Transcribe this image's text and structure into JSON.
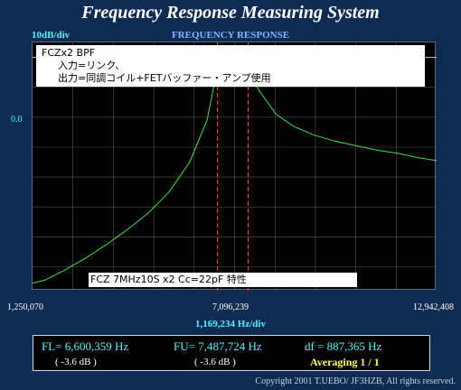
{
  "window": {
    "title": "Frequency Response Measuring System"
  },
  "panel": {
    "title": "FREQUENCY RESPONSE",
    "scale_label": "10dB/div",
    "ref_level": "0.0"
  },
  "comment": {
    "line1": "FCZx2 BPF",
    "line2": "入力=リンク、",
    "line3": "出力=同調コイル+FETバッファー・アンプ使用"
  },
  "caption": "FCZ 7MHz10S x2 Cc=22pF 特性",
  "axis": {
    "start": "1,250,070",
    "center": "7,096,239",
    "stop": "12,942,408",
    "span": "1,169,234 Hz/div"
  },
  "readout": {
    "fl": "FL= 6,600,359  Hz",
    "fu": "FU= 7,487,724  Hz",
    "df": "df = 887,365  Hz",
    "fl_level": "( -3.6 dB )",
    "fu_level": "( -3.6 dB )",
    "averaging": "Averaging   1 / 1"
  },
  "copyright": "Copyright 2001 T.UEBO/ JF3HZB, All rights reserved.",
  "colors": {
    "background": "#0e2c52",
    "trace": "#40e040",
    "ref_line": "#e0e020",
    "marker": "#ff4040",
    "grid": "#555555"
  },
  "chart_data": {
    "type": "line",
    "title": "FREQUENCY RESPONSE",
    "xlabel": "1,169,234 Hz/div",
    "ylabel": "10dB/div",
    "x_unit": "Hz",
    "y_unit": "dB",
    "xlim": [
      1250070,
      12942408
    ],
    "ylim": [
      -78,
      5
    ],
    "grid": true,
    "reference_level": 0,
    "markers": [
      6600359,
      7487724
    ],
    "series": [
      {
        "x": [
          1250070,
          1600000,
          2200000,
          2800000,
          3400000,
          4000000,
          4600000,
          5200000,
          5800000,
          6300000,
          6600359,
          6900000,
          7096239,
          7300000,
          7487724,
          7800000,
          8300000,
          8800000,
          9400000,
          10000000,
          10600000,
          11200000,
          11800000,
          12400000,
          12942408
        ],
        "y": [
          -75.5,
          -74.5,
          -71,
          -67,
          -62.5,
          -57.5,
          -52,
          -45,
          -35,
          -21,
          -3.6,
          -0.5,
          0,
          -1,
          -3.6,
          -11,
          -19,
          -23,
          -26,
          -28,
          -29.5,
          -31,
          -32,
          -33.5,
          -34.5
        ]
      }
    ]
  }
}
